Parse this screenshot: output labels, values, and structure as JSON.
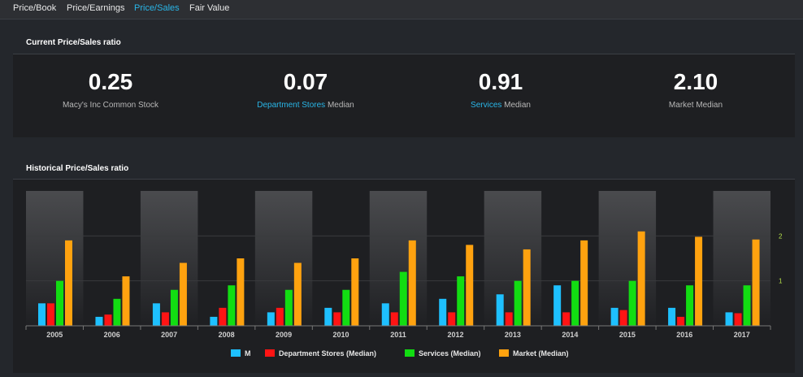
{
  "tabs": [
    {
      "label": "Price/Book",
      "active": false
    },
    {
      "label": "Price/Earnings",
      "active": false
    },
    {
      "label": "Price/Sales",
      "active": true
    },
    {
      "label": "Fair Value",
      "active": false
    }
  ],
  "current": {
    "title": "Current Price/Sales ratio",
    "metrics": [
      {
        "value": "0.25",
        "link": "",
        "label": "Macy's Inc Common Stock"
      },
      {
        "value": "0.07",
        "link": "Department Stores",
        "label": " Median"
      },
      {
        "value": "0.91",
        "link": "Services",
        "label": " Median"
      },
      {
        "value": "2.10",
        "link": "",
        "label": "Market Median"
      }
    ]
  },
  "historical": {
    "title": "Historical Price/Sales ratio"
  },
  "colors": {
    "accent": "#29b6e8",
    "series": [
      "#1ec0ff",
      "#ff1414",
      "#12dd12",
      "#ffa20f"
    ]
  },
  "chart_data": {
    "type": "bar",
    "categories": [
      "2005",
      "2006",
      "2007",
      "2008",
      "2009",
      "2010",
      "2011",
      "2012",
      "2013",
      "2014",
      "2015",
      "2016",
      "2017"
    ],
    "series": [
      {
        "name": "M",
        "values": [
          0.5,
          0.2,
          0.5,
          0.2,
          0.3,
          0.4,
          0.5,
          0.6,
          0.7,
          0.9,
          0.4,
          0.4,
          0.3
        ]
      },
      {
        "name": "Department Stores (Median)",
        "values": [
          0.5,
          0.25,
          0.3,
          0.4,
          0.4,
          0.3,
          0.3,
          0.3,
          0.3,
          0.3,
          0.35,
          0.2,
          0.28
        ]
      },
      {
        "name": "Services (Median)",
        "values": [
          1.0,
          0.6,
          0.8,
          0.9,
          0.8,
          0.8,
          1.2,
          1.1,
          1.0,
          1.0,
          1.0,
          0.9,
          0.9
        ]
      },
      {
        "name": "Market (Median)",
        "values": [
          1.9,
          1.1,
          1.4,
          1.5,
          1.4,
          1.5,
          1.9,
          1.8,
          1.7,
          1.9,
          2.1,
          1.98,
          1.92
        ]
      }
    ],
    "y_ticks": [
      "1",
      "2"
    ],
    "ylim": [
      0,
      3
    ],
    "legend_position": "bottom"
  }
}
